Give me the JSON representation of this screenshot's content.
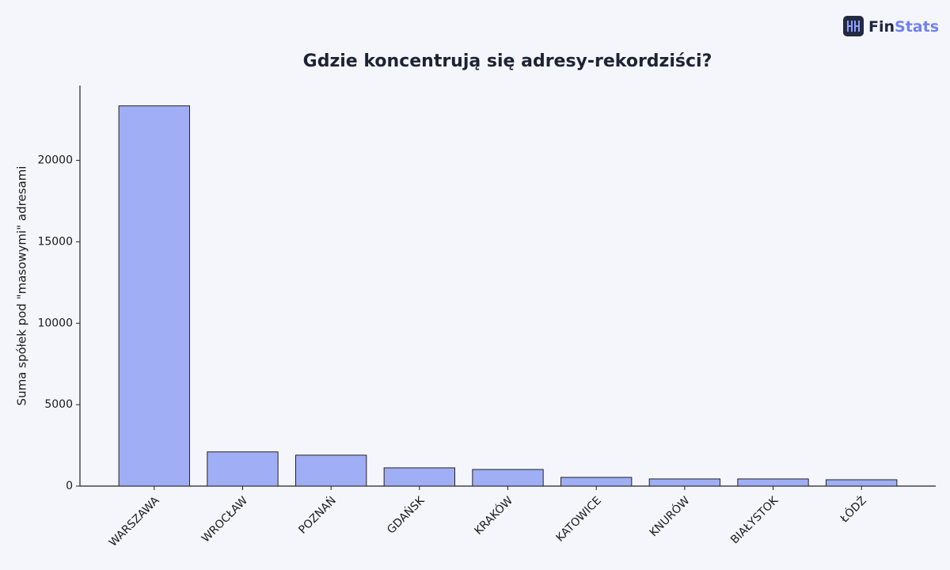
{
  "logo": {
    "first": "Fin",
    "second": "Stats"
  },
  "chart_data": {
    "type": "bar",
    "title": "Gdzie koncentrują się adresy-rekordziści?",
    "y_label": "Suma spółek pod \"masowymi\" adresami",
    "categories": [
      "WARSZAWA",
      "WROCŁAW",
      "POZNAŃ",
      "GDAŃSK",
      "KRAKÓW",
      "KATOWICE",
      "KNURÓW",
      "BIAŁYSTOK",
      "ŁÓDŹ"
    ],
    "values": [
      23350,
      2100,
      1900,
      1120,
      1020,
      535,
      440,
      440,
      390
    ],
    "color": "#a0aef5",
    "ylim": [
      0,
      24600
    ],
    "yticks": [
      0,
      5000,
      10000,
      15000,
      20000
    ]
  }
}
